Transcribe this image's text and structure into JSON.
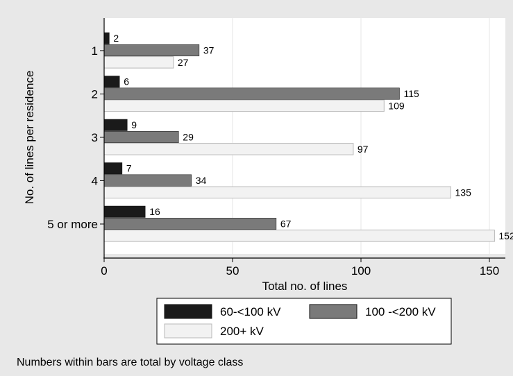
{
  "chart_data": {
    "type": "bar",
    "orientation": "horizontal",
    "categories": [
      "1",
      "2",
      "3",
      "4",
      "5 or more"
    ],
    "series": [
      {
        "name": "60-<100 kV",
        "color": "#1a1a1a",
        "values": [
          2,
          6,
          9,
          7,
          16
        ]
      },
      {
        "name": "100 -<200 kV",
        "color": "#7a7a7a",
        "values": [
          37,
          115,
          29,
          34,
          67
        ]
      },
      {
        "name": "200+ kV",
        "color": "#f2f2f2",
        "values": [
          27,
          109,
          97,
          135,
          152
        ]
      }
    ],
    "xlabel": "Total no. of lines",
    "ylabel": "No. of lines per residence",
    "xlim": [
      0,
      158
    ],
    "xticks": [
      0,
      50,
      100,
      150
    ],
    "grid": true,
    "legend_position": "bottom",
    "note": "Numbers within bars are total by voltage class",
    "colors": {
      "background": "#e8e8e8",
      "plot_background": "#ffffff",
      "gridline": "#e6e6e6"
    }
  }
}
